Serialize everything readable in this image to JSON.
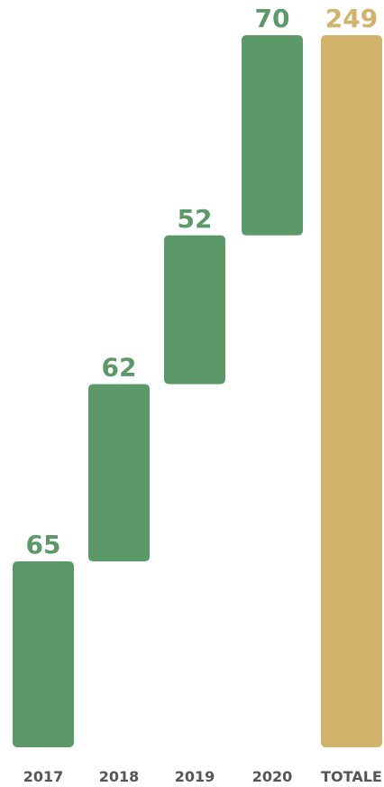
{
  "chart_data": {
    "type": "bar",
    "subtype": "waterfall",
    "categories": [
      "2017",
      "2018",
      "2019",
      "2020",
      "TOTALE"
    ],
    "values": [
      65,
      62,
      52,
      70,
      249
    ],
    "value_labels": [
      "65",
      "62",
      "52",
      "70",
      "249"
    ],
    "title": "",
    "xlabel": "",
    "ylabel": "",
    "ylim": [
      0,
      249
    ],
    "grid": false,
    "legend": "none",
    "colors": {
      "step_bars": "#5b9a68",
      "total_bar": "#d3b26c",
      "step_labels": "#5b9a68",
      "total_label": "#d3b26c",
      "total_category_label": "#d3b26c",
      "category_labels": "#555555"
    }
  }
}
